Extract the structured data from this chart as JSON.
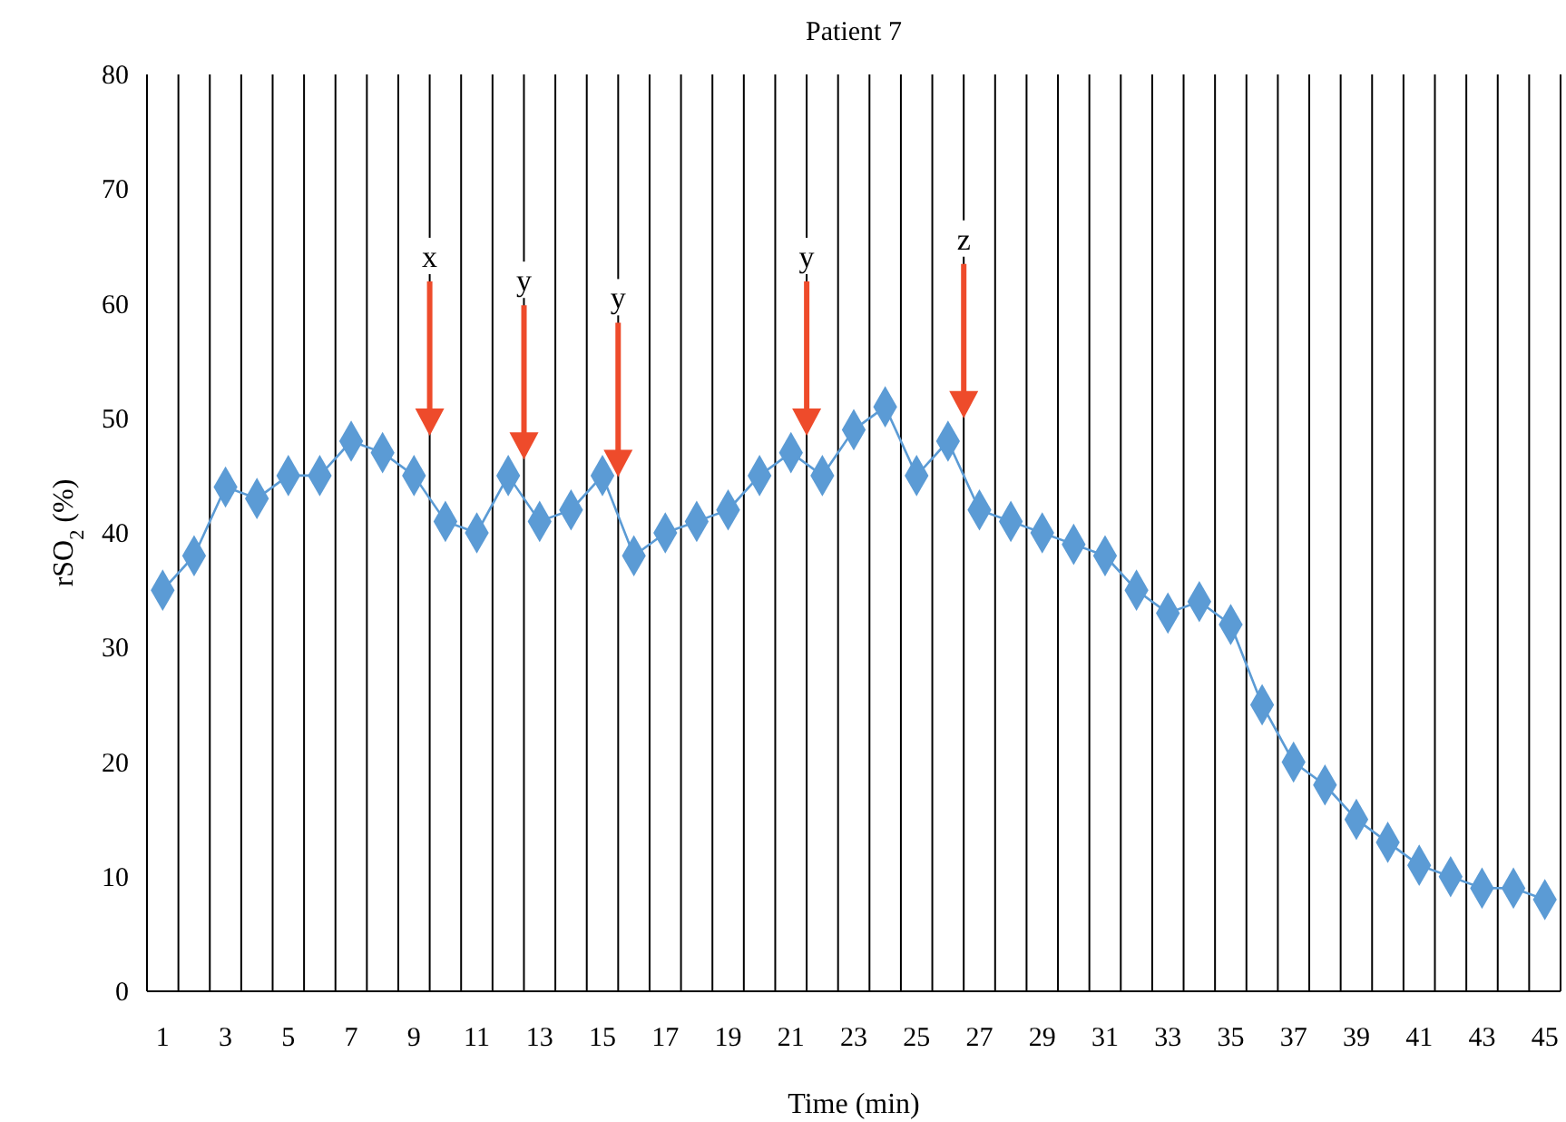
{
  "chart_data": {
    "type": "line",
    "title": "Patient 7",
    "xlabel": "Time (min)",
    "ylabel": "rSO$_{2}$ (%)",
    "x": [
      1,
      2,
      3,
      4,
      5,
      6,
      7,
      8,
      9,
      10,
      11,
      12,
      13,
      14,
      15,
      16,
      17,
      18,
      19,
      20,
      21,
      22,
      23,
      24,
      25,
      26,
      27,
      28,
      29,
      30,
      31,
      32,
      33,
      34,
      35,
      36,
      37,
      38,
      39,
      40,
      41,
      42,
      43,
      44,
      45
    ],
    "series": [
      {
        "color": "#5b9bd5",
        "values": [
          35,
          38,
          44,
          43,
          45,
          45,
          48,
          47,
          45,
          41,
          40,
          45,
          41,
          42,
          45,
          38,
          40,
          41,
          42,
          45,
          47,
          45,
          49,
          51,
          45,
          48,
          42,
          41,
          40,
          39,
          38,
          35,
          33,
          34,
          32,
          25,
          20,
          18,
          15,
          13,
          11,
          10,
          9,
          9,
          8
        ]
      }
    ],
    "xlim": [
      0.5,
      45.5
    ],
    "xticks": [
      1,
      {
        "value": 1.5,
        "label": null
      },
      {
        "value": 2.5,
        "label": null
      },
      3,
      {
        "value": 3.5,
        "label": null
      },
      {
        "value": 4.5,
        "label": null
      },
      5,
      {
        "value": 5.5,
        "label": null
      },
      {
        "value": 6.5,
        "label": null
      },
      7,
      {
        "value": 7.5,
        "label": null
      },
      {
        "value": 8.5,
        "label": null
      },
      9,
      {
        "value": 9.5,
        "label": null
      },
      {
        "value": 10.5,
        "label": null
      },
      11,
      {
        "value": 11.5,
        "label": null
      },
      {
        "value": 12.5,
        "label": null
      },
      13,
      {
        "value": 13.5,
        "label": null
      },
      {
        "value": 14.5,
        "label": null
      },
      15,
      {
        "value": 15.5,
        "label": null
      },
      {
        "value": 16.5,
        "label": null
      },
      17,
      {
        "value": 17.5,
        "label": null
      },
      {
        "value": 18.5,
        "label": null
      },
      19,
      {
        "value": 19.5,
        "label": null
      },
      {
        "value": 20.5,
        "label": null
      },
      21,
      {
        "value": 21.5,
        "label": null
      },
      {
        "value": 22.5,
        "label": null
      },
      23,
      {
        "value": 23.5,
        "label": null
      },
      {
        "value": 24.5,
        "label": null
      },
      25,
      {
        "value": 25.5,
        "label": null
      },
      {
        "value": 26.5,
        "label": null
      },
      27,
      {
        "value": 27.5,
        "label": null
      },
      {
        "value": 28.5,
        "label": null
      },
      29,
      {
        "value": 29.5,
        "label": null
      },
      {
        "value": 30.5,
        "label": null
      },
      31,
      {
        "value": 31.5,
        "label": null
      },
      {
        "value": 32.5,
        "label": null
      },
      33,
      {
        "value": 33.5,
        "label": null
      },
      {
        "value": 34.5,
        "label": null
      },
      35,
      {
        "value": 35.5,
        "label": null
      },
      {
        "value": 36.5,
        "label": null
      },
      37,
      {
        "value": 37.5,
        "label": null
      },
      {
        "value": 38.5,
        "label": null
      },
      39,
      {
        "value": 39.5,
        "label": null
      },
      {
        "value": 40.5,
        "label": null
      },
      41,
      {
        "value": 41.5,
        "label": null
      },
      {
        "value": 42.5,
        "label": null
      },
      43,
      {
        "value": 43.5,
        "label": null
      },
      {
        "value": 44.5,
        "label": null
      },
      45,
      {
        "value": 45.5,
        "label": null
      }
    ],
    "ylim": [
      0,
      80
    ],
    "yticks": [
      0,
      10,
      20,
      30,
      40,
      50,
      60,
      70,
      80
    ],
    "grid": "x",
    "marker": "diamond",
    "line_style": "solid",
    "annotations": [
      "x",
      "y",
      "y",
      "y",
      "z"
    ]
  }
}
